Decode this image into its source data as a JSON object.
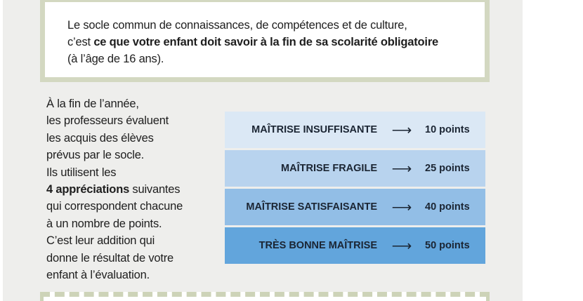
{
  "intro": {
    "line1": "Le  socle commun de connaissances, de compétences et de culture,",
    "line2_prefix": "c’est ",
    "line2_bold": "ce que votre enfant doit savoir à la fin de sa scolarité obligatoire",
    "line3": "(à l’âge de 16 ans)."
  },
  "explanation": {
    "l1": "À la fin de l’année,",
    "l2": "les professeurs évaluent",
    "l3": "les acquis des élèves",
    "l4": "prévus par le socle.",
    "l5": "Ils utilisent les",
    "l6_bold": "4 appréciations",
    "l6_rest": " suivantes",
    "l7": "qui correspondent chacune",
    "l8": "à un nombre de points.",
    "l9": "C’est leur addition qui",
    "l10": "donne le résultat de votre",
    "l11": "enfant à l’évaluation."
  },
  "levels": [
    {
      "label": "MAÎTRISE INSUFFISANTE",
      "arrow": "⟶",
      "points": "10 points",
      "color": "#dbe8f5"
    },
    {
      "label": "MAÎTRISE FRAGILE",
      "arrow": "⟶",
      "points": "25 points",
      "color": "#b8d3ee"
    },
    {
      "label": "MAÎTRISE SATISFAISANTE",
      "arrow": "⟶",
      "points": "40 points",
      "color": "#92bee6"
    },
    {
      "label": "TRÈS BONNE MAÎTRISE",
      "arrow": "⟶",
      "points": "50 points",
      "color": "#62a5dc"
    }
  ]
}
